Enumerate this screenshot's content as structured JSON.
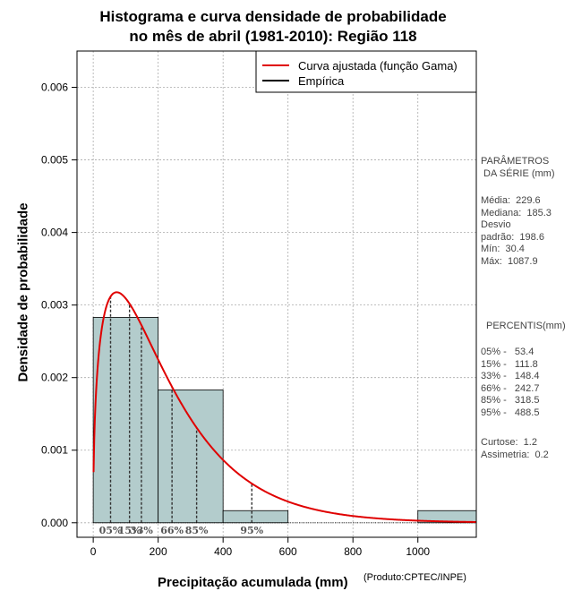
{
  "chart_data": {
    "type": "histogram",
    "title_line1": "Histograma e curva densidade de probabilidade",
    "title_line2": "no mês de abril (1981-2010): Região 118",
    "xlabel": "Precipitação acumulada (mm)",
    "ylabel": "Densidade de probabilidade",
    "credit": "(Produto:CPTEC/INPE)",
    "xlim": [
      -50,
      1180
    ],
    "ylim": [
      -0.0002,
      0.0065
    ],
    "xticks": [
      0,
      200,
      400,
      600,
      800,
      1000
    ],
    "xtick_labels": [
      "0",
      "200",
      "400",
      "600",
      "800",
      "1000"
    ],
    "yticks": [
      0.0,
      0.001,
      0.002,
      0.003,
      0.004,
      0.005,
      0.006
    ],
    "ytick_labels": [
      "0.000",
      "0.001",
      "0.002",
      "0.003",
      "0.004",
      "0.005",
      "0.006"
    ],
    "grid": true,
    "bars": [
      {
        "x0": 0,
        "x1": 200,
        "density": 0.00283
      },
      {
        "x0": 200,
        "x1": 400,
        "density": 0.00183
      },
      {
        "x0": 400,
        "x1": 600,
        "density": 0.000167
      },
      {
        "x0": 600,
        "x1": 800,
        "density": 0.0
      },
      {
        "x0": 800,
        "x1": 1000,
        "density": 0.0
      },
      {
        "x0": 1000,
        "x1": 1200,
        "density": 0.000167
      }
    ],
    "bar_color": "#b3cccc",
    "curve": {
      "name": "Curva ajustada (função Gama)",
      "distribution": "gamma",
      "shape": 1.46,
      "scale": 157,
      "color": "#e00000"
    },
    "empirical": {
      "name": "Empírica",
      "color": "#000000"
    },
    "legend_position": "top-right",
    "percentile_markers": [
      {
        "label": "05%",
        "value": 53.4
      },
      {
        "label": "15%",
        "value": 111.8
      },
      {
        "label": "33%",
        "value": 148.4
      },
      {
        "label": "66%",
        "value": 242.7
      },
      {
        "label": "85%",
        "value": 318.5
      },
      {
        "label": "95%",
        "value": 488.5
      }
    ]
  },
  "side_panel": {
    "params_header": "PARÂMETROS\n DA SÉRIE (mm)",
    "params": "Média:  229.6\nMediana:  185.3\nDesvio\npadrão:  198.6\nMín:  30.4\nMáx:  1087.9",
    "percentis_header": "PERCENTIS(mm)",
    "percentis": "05% -   53.4\n15% -   111.8\n33% -   148.4\n66% -   242.7\n85% -   318.5\n95% -   488.5",
    "moments": "Curtose:  1.2\nAssimetria:  0.2"
  }
}
